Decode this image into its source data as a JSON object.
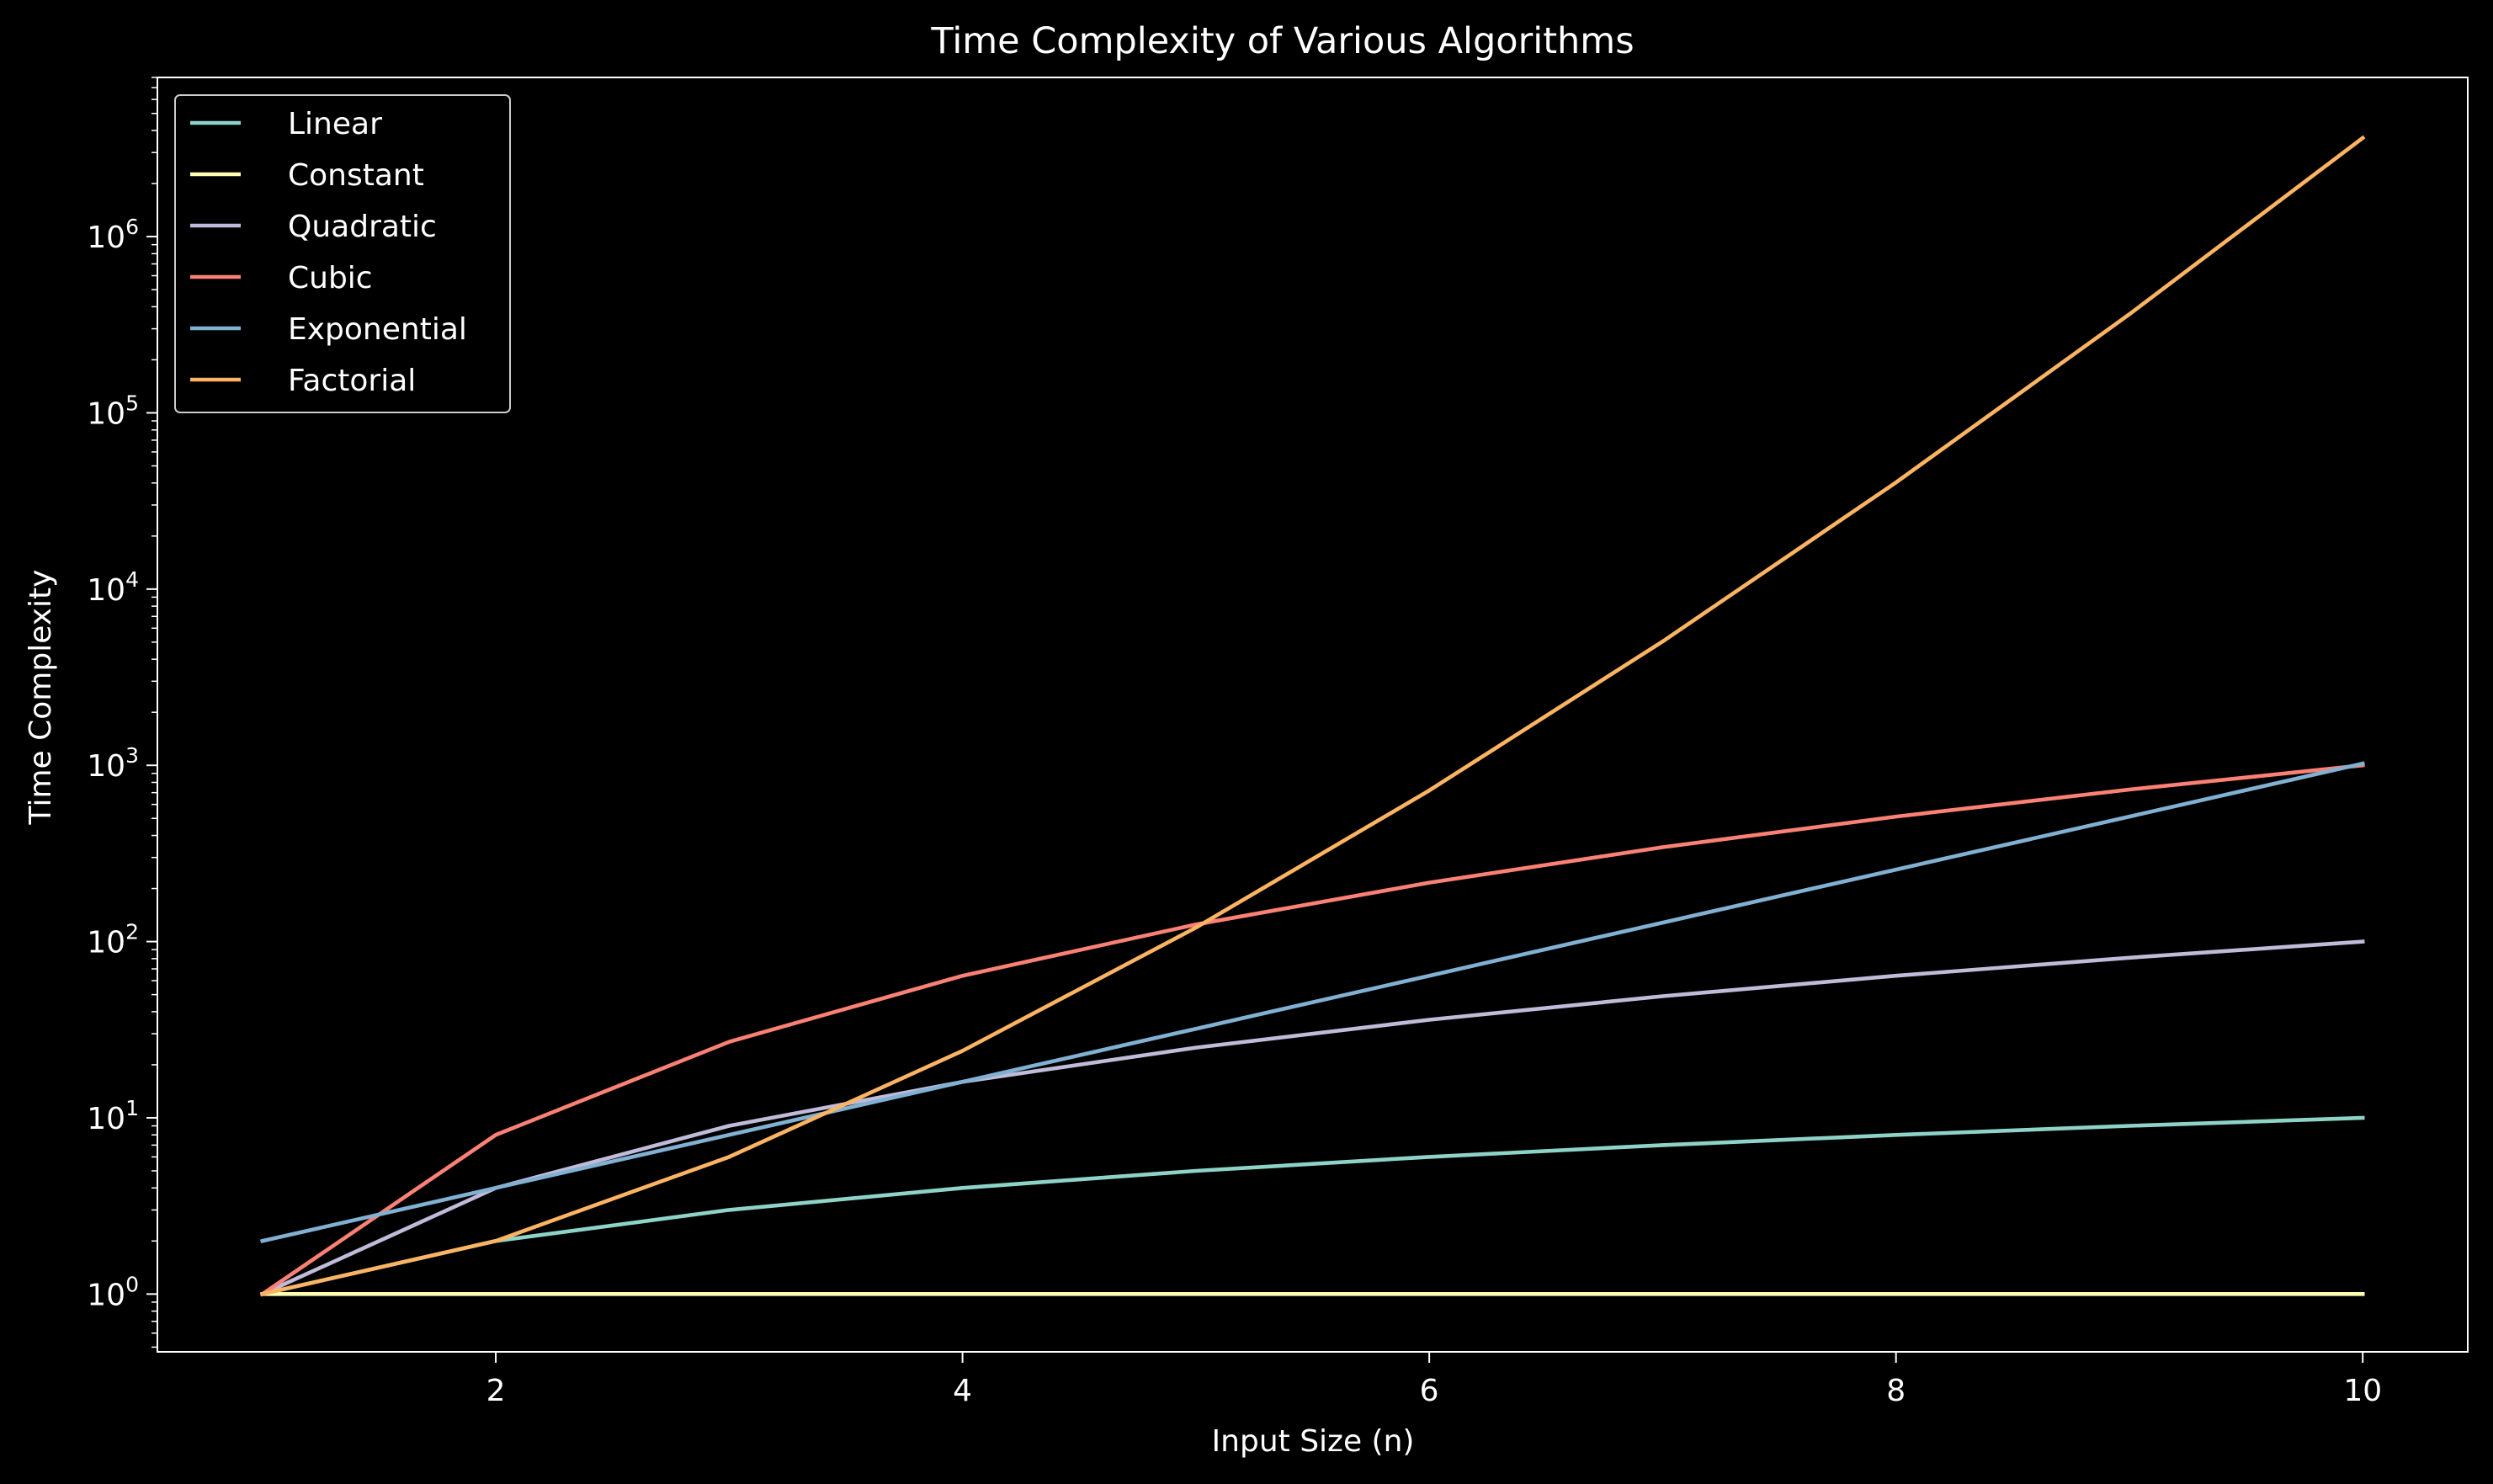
{
  "chart_data": {
    "type": "line",
    "title": "Time Complexity of Various Algorithms",
    "xlabel": "Input Size (n)",
    "ylabel": "Time Complexity",
    "yscale": "log",
    "xlim": [
      0.55,
      10.45
    ],
    "ylim": [
      0.47,
      8000000
    ],
    "x": [
      1,
      2,
      3,
      4,
      5,
      6,
      7,
      8,
      9,
      10
    ],
    "x_ticks": [
      2,
      4,
      6,
      8,
      10
    ],
    "y_ticks": [
      {
        "value": 1,
        "base": "10",
        "exp": "0"
      },
      {
        "value": 10,
        "base": "10",
        "exp": "1"
      },
      {
        "value": 100,
        "base": "10",
        "exp": "2"
      },
      {
        "value": 1000,
        "base": "10",
        "exp": "3"
      },
      {
        "value": 10000,
        "base": "10",
        "exp": "4"
      },
      {
        "value": 100000,
        "base": "10",
        "exp": "5"
      },
      {
        "value": 1000000,
        "base": "10",
        "exp": "6"
      }
    ],
    "grid": false,
    "legend_position": "top-left",
    "series": [
      {
        "name": "Linear",
        "color": "#8dd3c7",
        "values": [
          1,
          2,
          3,
          4,
          5,
          6,
          7,
          8,
          9,
          10
        ]
      },
      {
        "name": "Constant",
        "color": "#feffb3",
        "values": [
          1,
          1,
          1,
          1,
          1,
          1,
          1,
          1,
          1,
          1
        ]
      },
      {
        "name": "Quadratic",
        "color": "#bfbbd9",
        "values": [
          1,
          4,
          9,
          16,
          25,
          36,
          49,
          64,
          81,
          100
        ]
      },
      {
        "name": "Cubic",
        "color": "#fa8174",
        "values": [
          1,
          8,
          27,
          64,
          125,
          216,
          343,
          512,
          729,
          1000
        ]
      },
      {
        "name": "Exponential",
        "color": "#81b1d2",
        "values": [
          2,
          4,
          8,
          16,
          32,
          64,
          128,
          256,
          512,
          1024
        ]
      },
      {
        "name": "Factorial",
        "color": "#fdb462",
        "values": [
          1,
          2,
          6,
          24,
          120,
          720,
          5040,
          40320,
          362880,
          3628800
        ]
      }
    ]
  },
  "colors": {
    "background": "#000000",
    "foreground": "#ffffff"
  }
}
